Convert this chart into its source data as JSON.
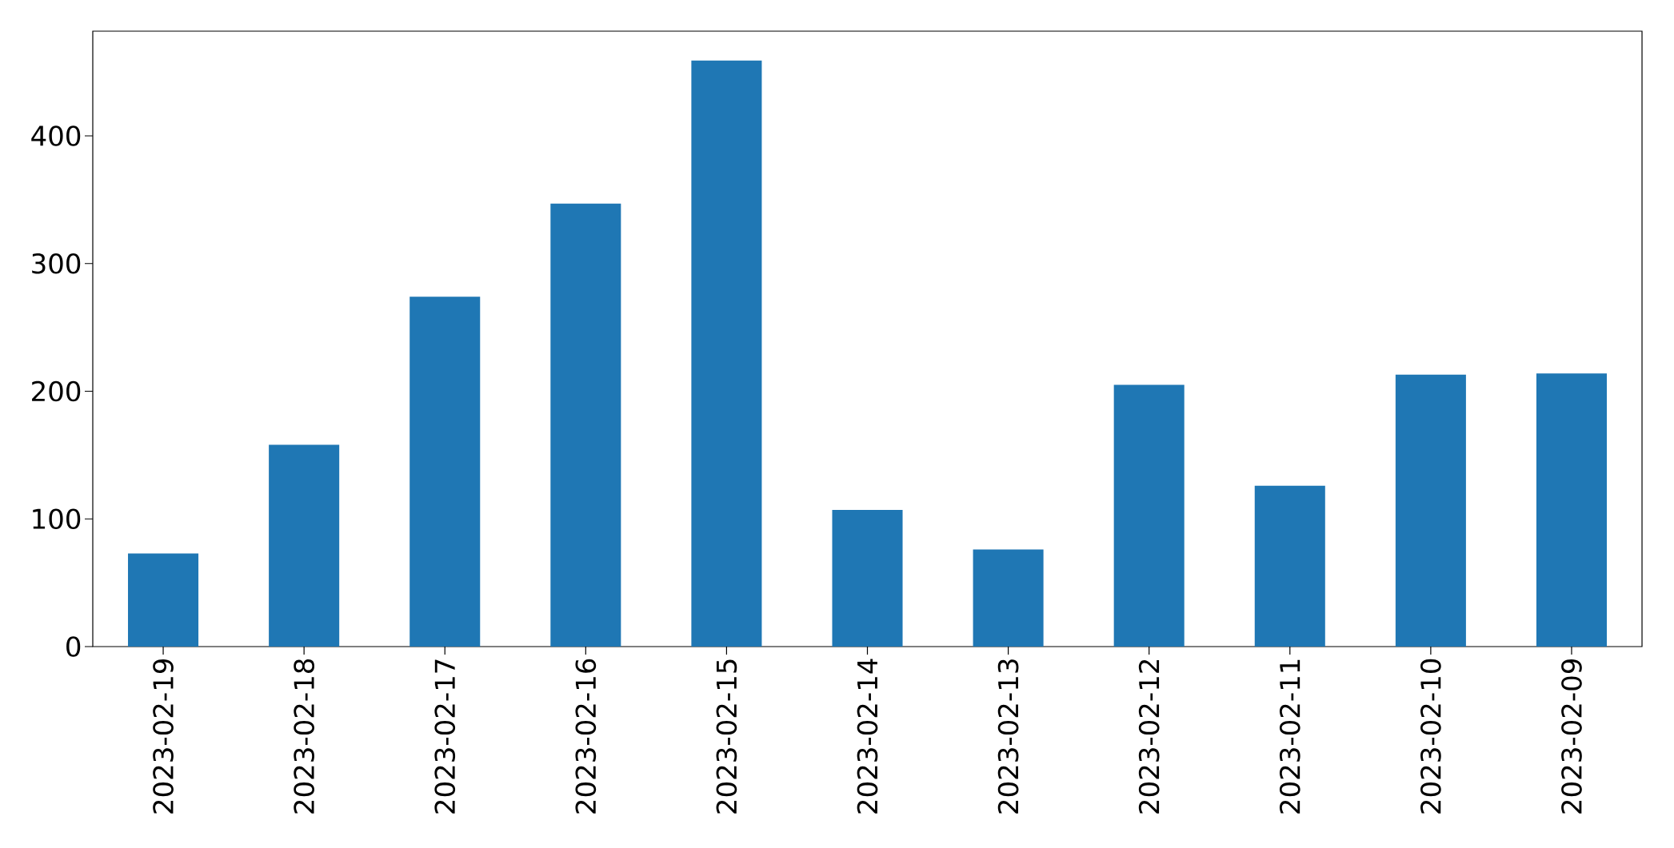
{
  "chart_data": {
    "type": "bar",
    "categories": [
      "2023-02-19",
      "2023-02-18",
      "2023-02-17",
      "2023-02-16",
      "2023-02-15",
      "2023-02-14",
      "2023-02-13",
      "2023-02-12",
      "2023-02-11",
      "2023-02-10",
      "2023-02-09"
    ],
    "values": [
      73,
      158,
      274,
      347,
      459,
      107,
      76,
      205,
      126,
      213,
      214
    ],
    "color": "#1f77b4",
    "ylim": [
      0,
      482
    ],
    "yticks": [
      0,
      100,
      200,
      300,
      400
    ]
  }
}
